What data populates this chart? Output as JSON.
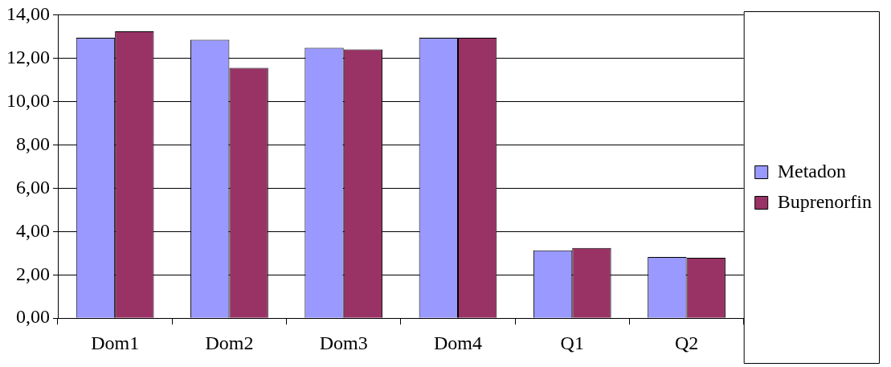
{
  "chart_data": {
    "type": "bar",
    "categories": [
      "Dom1",
      "Dom2",
      "Dom3",
      "Dom4",
      "Q1",
      "Q2"
    ],
    "series": [
      {
        "name": "Metadon",
        "color": "#9999ff",
        "values": [
          12.94,
          12.85,
          12.48,
          12.94,
          3.13,
          2.82
        ]
      },
      {
        "name": "Buprenorfin",
        "color": "#993366",
        "values": [
          13.24,
          11.55,
          12.4,
          12.94,
          3.24,
          2.79
        ]
      }
    ],
    "ylim": [
      0,
      14
    ],
    "yticks": [
      {
        "value": 0,
        "label": "0,00"
      },
      {
        "value": 2,
        "label": "2,00"
      },
      {
        "value": 4,
        "label": "4,00"
      },
      {
        "value": 6,
        "label": "6,00"
      },
      {
        "value": 8,
        "label": "8,00"
      },
      {
        "value": 10,
        "label": "10,00"
      },
      {
        "value": 12,
        "label": "12,00"
      },
      {
        "value": 14,
        "label": "14,00"
      }
    ],
    "grid": "y",
    "legend": "right"
  }
}
